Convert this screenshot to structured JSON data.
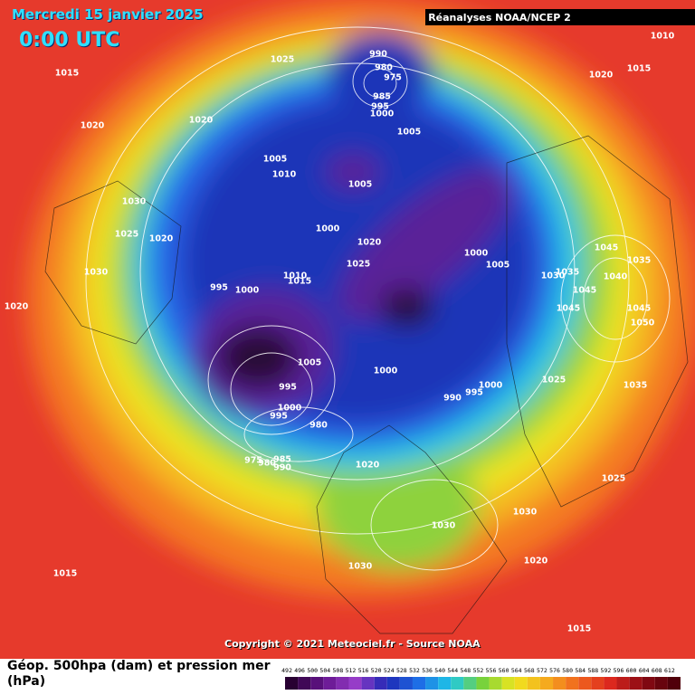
{
  "header": {
    "title": "Mercredi 15 janvier 2025",
    "time": "0:00 UTC",
    "source": "Réanalyses NOAA/NCEP 2"
  },
  "isobars": [
    "990",
    "980",
    "975",
    "985",
    "995",
    "1000",
    "1005",
    "1025",
    "1015",
    "1020",
    "1020",
    "1005",
    "1010",
    "1005",
    "1030",
    "1025",
    "1020",
    "1000",
    "1020",
    "1025",
    "1000",
    "1005",
    "1030",
    "995",
    "1000",
    "1010",
    "1015",
    "1020",
    "1005",
    "995",
    "1000",
    "995",
    "980",
    "1000",
    "990",
    "995",
    "1000",
    "1025",
    "975",
    "980",
    "985",
    "990",
    "1020",
    "1030",
    "1030",
    "1030",
    "1020",
    "1015",
    "1015",
    "1025",
    "1035",
    "1045",
    "1035",
    "1040",
    "1030",
    "1035",
    "1045",
    "1045",
    "1045",
    "1050",
    "1010",
    "1020",
    "1015"
  ],
  "footer": {
    "copyright": "Copyright © 2021 Meteociel.fr - Source NOAA",
    "legend_title": "Géop. 500hpa (dam) et pression mer (hPa)",
    "scale": [
      492,
      496,
      500,
      504,
      508,
      512,
      516,
      520,
      524,
      528,
      532,
      536,
      540,
      544,
      548,
      552,
      556,
      560,
      564,
      568,
      572,
      576,
      580,
      584,
      588,
      592,
      596,
      600,
      604,
      608,
      612
    ]
  }
}
